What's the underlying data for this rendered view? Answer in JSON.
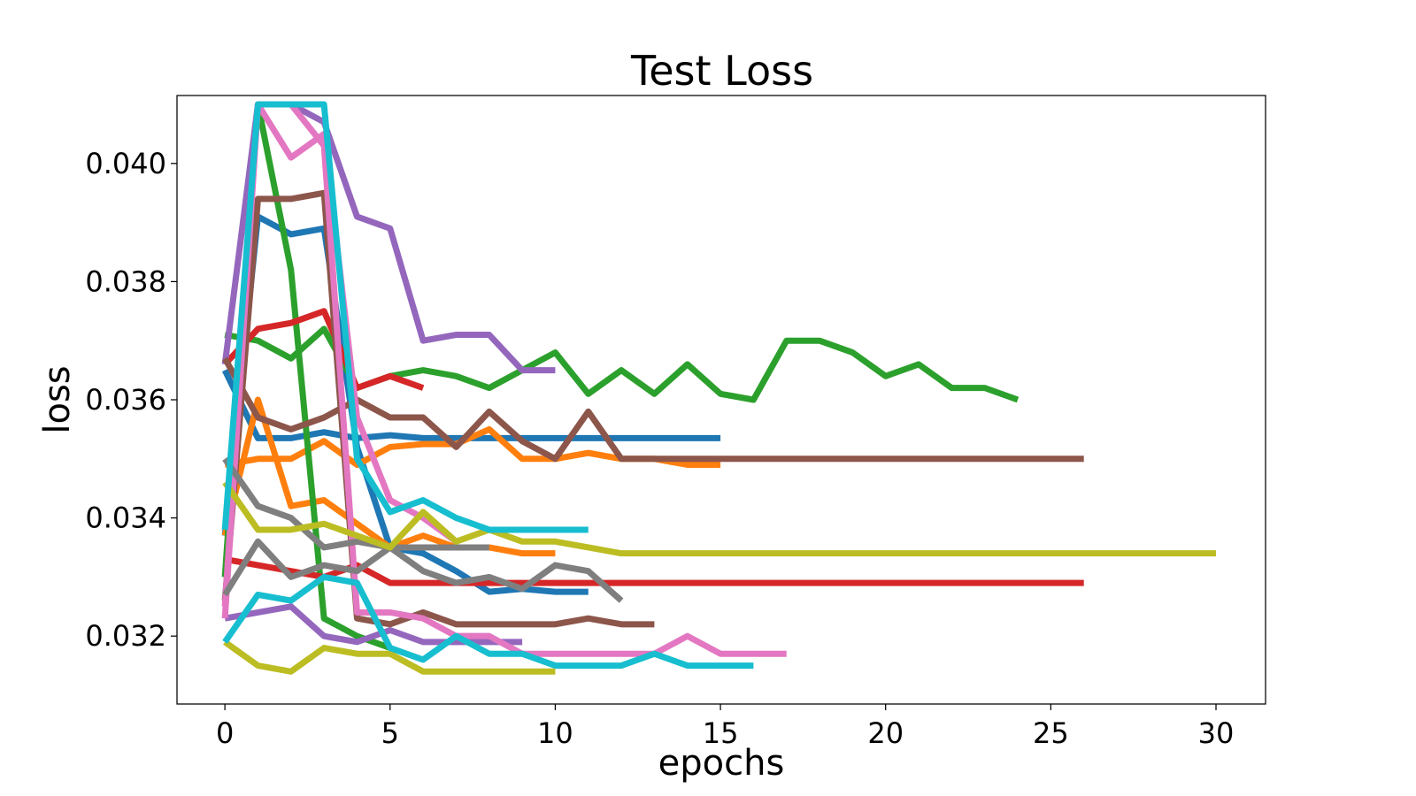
{
  "chart_data": {
    "type": "line",
    "title": "Test Loss",
    "xlabel": "epochs",
    "ylabel": "loss",
    "xlim": [
      -1.45,
      31.5
    ],
    "ylim": [
      0.03085,
      0.04115
    ],
    "xticks": [
      0,
      5,
      10,
      15,
      20,
      25,
      30
    ],
    "xtick_labels": [
      "0",
      "5",
      "10",
      "15",
      "20",
      "25",
      "30"
    ],
    "yticks": [
      0.032,
      0.034,
      0.036,
      0.038,
      0.04
    ],
    "ytick_labels": [
      "0.032",
      "0.034",
      "0.036",
      "0.038",
      "0.040"
    ],
    "grid": false,
    "legend": "none",
    "series": [
      {
        "color": "#1f77b4",
        "x": [
          0,
          1,
          2,
          3,
          4,
          5,
          6,
          7,
          8,
          9,
          10,
          11,
          12,
          13,
          14,
          15
        ],
        "y": [
          0.0365,
          0.03535,
          0.03535,
          0.03545,
          0.03535,
          0.0354,
          0.03535,
          0.03535,
          0.03535,
          0.03535,
          0.03535,
          0.03535,
          0.03535,
          0.03535,
          0.03535,
          0.03535
        ]
      },
      {
        "color": "#1f77b4",
        "x": [
          0,
          1,
          2,
          3,
          4,
          5,
          6,
          7,
          8,
          9,
          10,
          11
        ],
        "y": [
          0.0337,
          0.0391,
          0.0388,
          0.0389,
          0.0352,
          0.0335,
          0.0334,
          0.0331,
          0.03275,
          0.0328,
          0.03275,
          0.03275
        ]
      },
      {
        "color": "#ff7f0e",
        "x": [
          0,
          1,
          2,
          3,
          4,
          5,
          6,
          7,
          8,
          9,
          10,
          11,
          12,
          13,
          14,
          15
        ],
        "y": [
          0.0349,
          0.035,
          0.035,
          0.0353,
          0.0349,
          0.0352,
          0.03525,
          0.03525,
          0.0355,
          0.035,
          0.035,
          0.0351,
          0.035,
          0.035,
          0.0349,
          0.0349
        ]
      },
      {
        "color": "#ff7f0e",
        "x": [
          0,
          1,
          2,
          3,
          4,
          5,
          6,
          7,
          8,
          9,
          10
        ],
        "y": [
          0.0337,
          0.036,
          0.0342,
          0.0343,
          0.0339,
          0.0335,
          0.0337,
          0.0335,
          0.0335,
          0.0334,
          0.0334
        ]
      },
      {
        "color": "#2ca02c",
        "x": [
          0,
          1,
          2,
          3,
          4,
          5,
          6,
          7,
          8,
          9,
          10,
          11,
          12,
          13,
          14,
          15,
          16,
          17,
          18,
          19,
          20,
          21,
          22,
          23,
          24
        ],
        "y": [
          0.0371,
          0.037,
          0.0367,
          0.0372,
          0.0362,
          0.0364,
          0.0365,
          0.0364,
          0.0362,
          0.0365,
          0.0368,
          0.0361,
          0.0365,
          0.0361,
          0.0366,
          0.0361,
          0.036,
          0.037,
          0.037,
          0.0368,
          0.0364,
          0.0366,
          0.0362,
          0.0362,
          0.036
        ]
      },
      {
        "color": "#2ca02c",
        "x": [
          0,
          1,
          2,
          3,
          4,
          5
        ],
        "y": [
          0.033,
          0.041,
          0.0382,
          0.0323,
          0.032,
          0.0318
        ]
      },
      {
        "color": "#d62728",
        "x": [
          0,
          1,
          2,
          3,
          4,
          5,
          6
        ],
        "y": [
          0.0366,
          0.0372,
          0.0373,
          0.0375,
          0.0362,
          0.0364,
          0.0362
        ]
      },
      {
        "color": "#d62728",
        "x": [
          0,
          1,
          2,
          3,
          4,
          5,
          6,
          7,
          8,
          9,
          10,
          11,
          12,
          13,
          14,
          15,
          16,
          17,
          18,
          19,
          20,
          21,
          22,
          23,
          24,
          25,
          26
        ],
        "y": [
          0.0333,
          0.0332,
          0.0331,
          0.033,
          0.0332,
          0.0329,
          0.0329,
          0.0329,
          0.0329,
          0.0329,
          0.0329,
          0.0329,
          0.0329,
          0.0329,
          0.0329,
          0.0329,
          0.0329,
          0.0329,
          0.0329,
          0.0329,
          0.0329,
          0.0329,
          0.0329,
          0.0329,
          0.0329,
          0.0329,
          0.0329
        ]
      },
      {
        "color": "#9467bd",
        "x": [
          0,
          1,
          2,
          3,
          4,
          5,
          6,
          7,
          8,
          9,
          10
        ],
        "y": [
          0.0366,
          0.041,
          0.041,
          0.0407,
          0.0391,
          0.0389,
          0.037,
          0.0371,
          0.0371,
          0.0365,
          0.0365
        ]
      },
      {
        "color": "#9467bd",
        "x": [
          0,
          1,
          2,
          3,
          4,
          5,
          6,
          7,
          8,
          9
        ],
        "y": [
          0.0323,
          0.0324,
          0.0325,
          0.032,
          0.0319,
          0.0321,
          0.0319,
          0.0319,
          0.0319,
          0.0319
        ]
      },
      {
        "color": "#8c564b",
        "x": [
          0,
          1,
          2,
          3,
          4,
          5,
          6,
          7,
          8,
          9,
          10,
          11,
          12,
          13,
          14,
          15,
          16,
          17,
          18,
          19,
          20,
          21,
          22,
          23,
          24,
          25,
          26
        ],
        "y": [
          0.0367,
          0.0357,
          0.0355,
          0.0357,
          0.036,
          0.0357,
          0.0357,
          0.0352,
          0.0358,
          0.0353,
          0.035,
          0.0358,
          0.035,
          0.035,
          0.035,
          0.035,
          0.035,
          0.035,
          0.035,
          0.035,
          0.035,
          0.035,
          0.035,
          0.035,
          0.035,
          0.035,
          0.035
        ]
      },
      {
        "color": "#8c564b",
        "x": [
          0,
          1,
          2,
          3,
          4,
          5,
          6,
          7,
          8,
          9,
          10,
          11,
          12,
          13
        ],
        "y": [
          0.0326,
          0.0394,
          0.0394,
          0.0395,
          0.0323,
          0.0322,
          0.0324,
          0.0322,
          0.0322,
          0.0322,
          0.0322,
          0.0323,
          0.0322,
          0.0322
        ]
      },
      {
        "color": "#e377c2",
        "x": [
          0,
          1,
          2,
          3,
          4,
          5,
          6,
          7,
          8,
          9,
          10,
          11,
          12,
          13,
          14,
          15,
          16,
          17
        ],
        "y": [
          0.0323,
          0.041,
          0.041,
          0.0403,
          0.0324,
          0.0324,
          0.0323,
          0.032,
          0.032,
          0.0317,
          0.0317,
          0.0317,
          0.0317,
          0.0317,
          0.032,
          0.0317,
          0.0317,
          0.0317
        ]
      },
      {
        "color": "#e377c2",
        "x": [
          0,
          1,
          2,
          3,
          4,
          5,
          6,
          7
        ],
        "y": [
          0.0325,
          0.041,
          0.0401,
          0.0405,
          0.0357,
          0.0343,
          0.034,
          0.0336
        ]
      },
      {
        "color": "#7f7f7f",
        "x": [
          0,
          1,
          2,
          3,
          4,
          5,
          6,
          7,
          8
        ],
        "y": [
          0.035,
          0.0342,
          0.034,
          0.0335,
          0.0336,
          0.0335,
          0.0335,
          0.0335,
          0.0335
        ]
      },
      {
        "color": "#7f7f7f",
        "x": [
          0,
          1,
          2,
          3,
          4,
          5,
          6,
          7,
          8,
          9,
          10,
          11,
          12
        ],
        "y": [
          0.0327,
          0.0336,
          0.033,
          0.0332,
          0.0331,
          0.0335,
          0.0331,
          0.0329,
          0.033,
          0.0328,
          0.0332,
          0.0331,
          0.0326
        ]
      },
      {
        "color": "#bcbd22",
        "x": [
          0,
          1,
          2,
          3,
          4,
          5,
          6,
          7,
          8,
          9,
          10,
          11,
          12,
          13,
          14,
          15,
          16,
          17,
          18,
          19,
          20,
          21,
          22,
          23,
          24,
          25,
          26,
          27,
          28,
          29,
          30
        ],
        "y": [
          0.0346,
          0.0338,
          0.0338,
          0.0339,
          0.0337,
          0.0335,
          0.0341,
          0.0336,
          0.0338,
          0.0336,
          0.0336,
          0.0335,
          0.0334,
          0.0334,
          0.0334,
          0.0334,
          0.0334,
          0.0334,
          0.0334,
          0.0334,
          0.0334,
          0.0334,
          0.0334,
          0.0334,
          0.0334,
          0.0334,
          0.0334,
          0.0334,
          0.0334,
          0.0334,
          0.0334
        ]
      },
      {
        "color": "#bcbd22",
        "x": [
          0,
          1,
          2,
          3,
          4,
          5,
          6,
          7,
          8,
          9,
          10
        ],
        "y": [
          0.0319,
          0.0315,
          0.0314,
          0.0318,
          0.0317,
          0.0317,
          0.0314,
          0.0314,
          0.0314,
          0.0314,
          0.0314
        ]
      },
      {
        "color": "#17becf",
        "x": [
          0,
          1,
          2,
          3,
          4,
          5,
          6,
          7,
          8,
          9,
          10,
          11
        ],
        "y": [
          0.0338,
          0.041,
          0.041,
          0.041,
          0.035,
          0.0341,
          0.0343,
          0.034,
          0.0338,
          0.0338,
          0.0338,
          0.0338
        ]
      },
      {
        "color": "#17becf",
        "x": [
          0,
          1,
          2,
          3,
          4,
          5,
          6,
          7,
          8,
          9,
          10,
          11,
          12,
          13,
          14,
          15,
          16
        ],
        "y": [
          0.0319,
          0.0327,
          0.0326,
          0.033,
          0.0329,
          0.0318,
          0.0316,
          0.032,
          0.0317,
          0.0317,
          0.0315,
          0.0315,
          0.0315,
          0.0317,
          0.0315,
          0.0315,
          0.0315
        ]
      }
    ]
  }
}
